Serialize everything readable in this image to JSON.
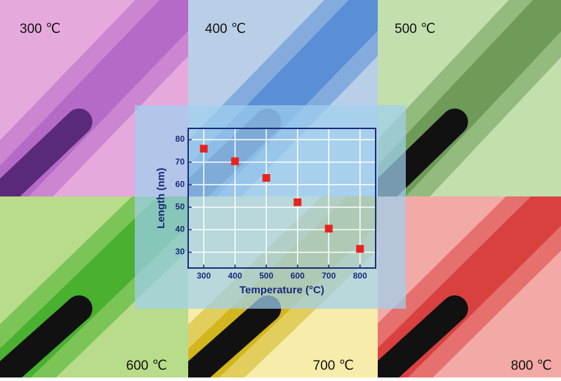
{
  "panels": [
    {
      "label": "300 ℃"
    },
    {
      "label": "400 ℃"
    },
    {
      "label": "500 ℃"
    },
    {
      "label": "600 ℃"
    },
    {
      "label": "700 ℃"
    },
    {
      "label": "800 ℃"
    }
  ],
  "chart_data": {
    "type": "scatter",
    "x": [
      300,
      400,
      500,
      600,
      700,
      800
    ],
    "values": [
      76,
      70.4,
      63,
      52.2,
      40.5,
      31.5
    ],
    "color": "#e8231f",
    "xlabel": "Temperature (°C)",
    "ylabel": "Length (nm)",
    "xlim": [
      250,
      850
    ],
    "ylim": [
      23,
      85
    ],
    "xticks": [
      300,
      400,
      500,
      600,
      700,
      800
    ],
    "yticks": [
      30,
      40,
      50,
      60,
      70,
      80
    ],
    "grid": true
  }
}
